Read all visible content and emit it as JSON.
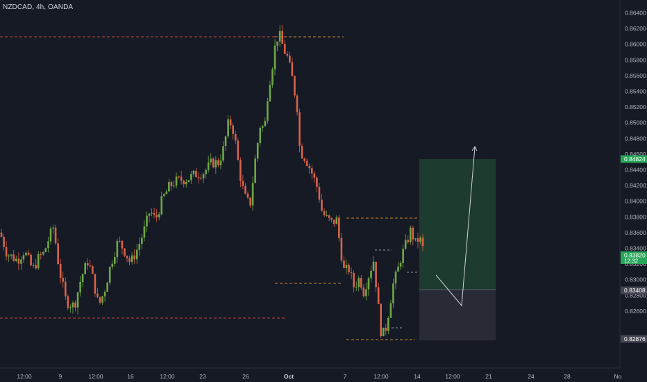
{
  "header": {
    "symbol_line": "NZDCAD, 4h, OANDA"
  },
  "chart_data": {
    "type": "candlestick",
    "symbol": "NZDCAD",
    "interval": "4h",
    "broker": "OANDA",
    "ylim": [
      0.8258,
      0.865
    ],
    "y_ticks": [
      "0.86400",
      "0.86200",
      "0.86000",
      "0.85800",
      "0.85600",
      "0.85400",
      "0.85200",
      "0.85000",
      "0.84800",
      "0.84600",
      "0.84400",
      "0.84200",
      "0.84000",
      "0.83800",
      "0.83600",
      "0.83400",
      "0.83200",
      "0.83000",
      "0.82800",
      "0.82600"
    ],
    "x_ticks": [
      "12:00",
      "9",
      "12:00",
      "16",
      "12:00",
      "23",
      "26",
      "Oct",
      "7",
      "12:00",
      "14",
      "12:00",
      "21",
      "24",
      "28",
      "No"
    ],
    "grid": false,
    "price_labels": [
      {
        "name": "target-price-label",
        "text": "0.84824",
        "bg": "#26a65b",
        "fg": "#ffffff"
      },
      {
        "name": "current-price-label",
        "text": "0.83820",
        "subtext": "12:32",
        "bg": "#26a65b",
        "fg": "#ffffff"
      },
      {
        "name": "entry-price-label",
        "text": "0.83408",
        "bg": "#434651",
        "fg": "#ffffff"
      },
      {
        "name": "stop-price-label",
        "text": "0.82876",
        "bg": "#434651",
        "fg": "#ffffff"
      }
    ],
    "candle_colors": {
      "up": "#6fa847",
      "down": "#d9634a"
    },
    "seed_open": 0.8407
  }
}
